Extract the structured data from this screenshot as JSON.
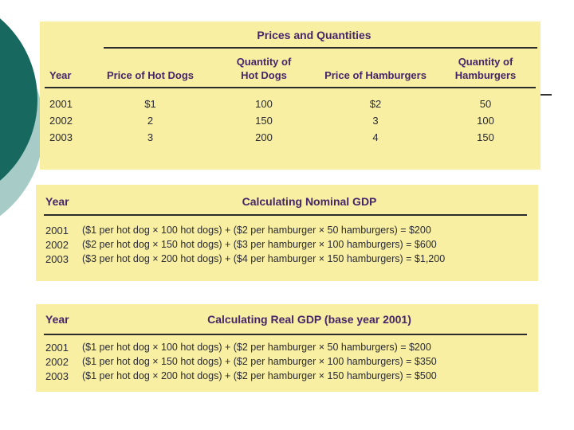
{
  "colors": {
    "page_bg": "#FFFFFF",
    "table_bg": "#F8EFA2",
    "header_text": "#46266A",
    "body_text": "#2B2B33",
    "rule": "#2B2B2B",
    "circle_dark": "#17695F",
    "circle_light": "#A7CBC7",
    "side_dash": "#333333"
  },
  "prices_quantities": {
    "title": "Prices and Quantities",
    "headers": [
      [
        "Year"
      ],
      [
        "Price of Hot Dogs"
      ],
      [
        "Quantity of",
        "Hot Dogs"
      ],
      [
        "Price of Hamburgers"
      ],
      [
        "Quantity of",
        "Hamburgers"
      ]
    ],
    "rows": [
      [
        "2001",
        "$1",
        "100",
        "$2",
        "50"
      ],
      [
        "2002",
        "2",
        "150",
        "3",
        "100"
      ],
      [
        "2003",
        "3",
        "200",
        "4",
        "150"
      ]
    ]
  },
  "nominal_gdp": {
    "year_header": "Year",
    "title": "Calculating Nominal GDP",
    "rows": [
      {
        "year": "2001",
        "formula": "($1 per hot dog × 100 hot dogs) + ($2 per hamburger × 50 hamburgers) = $200"
      },
      {
        "year": "2002",
        "formula": "($2 per hot dog × 150 hot dogs) + ($3 per hamburger × 100 hamburgers) = $600"
      },
      {
        "year": "2003",
        "formula": "($3 per hot dog × 200 hot dogs) + ($4 per hamburger × 150 hamburgers) = $1,200"
      }
    ]
  },
  "real_gdp": {
    "year_header": "Year",
    "title": "Calculating Real GDP (base year 2001)",
    "rows": [
      {
        "year": "2001",
        "formula": "($1 per hot dog × 100 hot dogs) + ($2 per hamburger × 50 hamburgers) = $200"
      },
      {
        "year": "2002",
        "formula": "($1 per hot dog × 150 hot dogs) + ($2 per hamburger × 100 hamburgers) = $350"
      },
      {
        "year": "2003",
        "formula": "($1 per hot dog × 200 hot dogs) + ($2 per hamburger × 150 hamburgers) = $500"
      }
    ]
  }
}
